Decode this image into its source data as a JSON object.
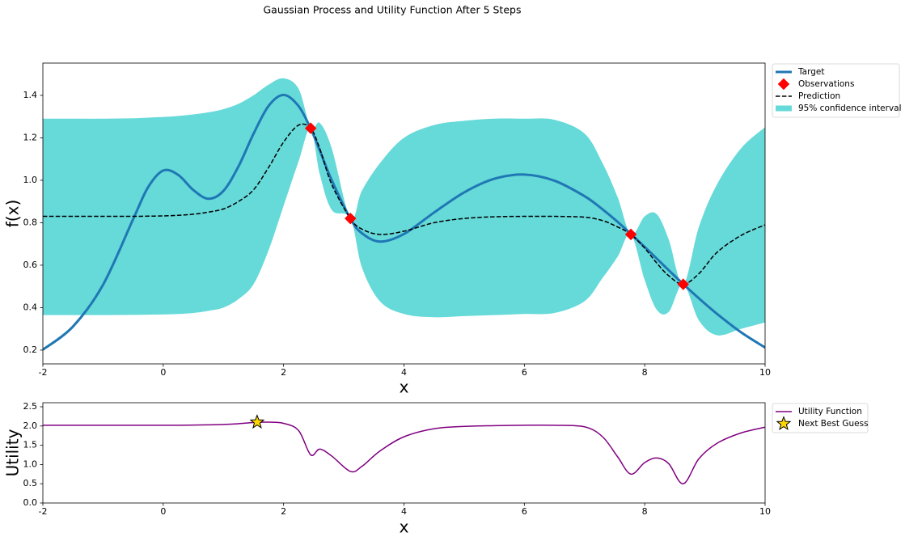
{
  "title": "Gaussian Process and Utility Function After 5 Steps",
  "chart_data": [
    {
      "type": "line",
      "xlabel": "x",
      "ylabel": "f(x)",
      "legend": "outside-upper-right",
      "grid": false,
      "xlim": [
        -2,
        10
      ],
      "ylim": [
        0.135,
        1.552
      ],
      "xticks": [
        -2,
        0,
        2,
        4,
        6,
        8,
        10
      ],
      "yticks": [
        0.2,
        0.4,
        0.6,
        0.8,
        {
          "value": 1,
          "label": "1.0"
        },
        1.2,
        1.4
      ],
      "x": [
        -2,
        -1.5,
        -1,
        -0.5,
        -0.25,
        0,
        0.25,
        0.5,
        0.75,
        1,
        1.25,
        1.5,
        1.75,
        2,
        2.25,
        2.45,
        2.6,
        2.8,
        3.11,
        3.3,
        3.6,
        4,
        4.5,
        5,
        5.5,
        6,
        6.5,
        7,
        7.3,
        7.55,
        7.77,
        8,
        8.2,
        8.4,
        8.64,
        8.9,
        9.2,
        9.6,
        10
      ],
      "series": [
        {
          "name": "Target",
          "kind": "line",
          "color": "#1f77b4",
          "width": 3,
          "values": [
            0.202,
            0.311,
            0.508,
            0.817,
            0.968,
            1.046,
            1.025,
            0.954,
            0.913,
            0.95,
            1.065,
            1.219,
            1.35,
            1.402,
            1.349,
            1.243,
            1.141,
            1.0,
            0.819,
            0.751,
            0.711,
            0.747,
            0.848,
            0.943,
            1.007,
            1.027,
            0.998,
            0.925,
            0.863,
            0.804,
            0.747,
            0.686,
            0.631,
            0.576,
            0.511,
            0.444,
            0.371,
            0.284,
            0.212
          ]
        },
        {
          "name": "Observations",
          "kind": "scatter",
          "marker": "diamond",
          "color": "#ff0000",
          "x": [
            2.45,
            3.11,
            7.77,
            8.64
          ],
          "values": [
            1.245,
            0.82,
            0.745,
            0.51
          ]
        },
        {
          "name": "Prediction",
          "kind": "line",
          "dash": "dashed",
          "color": "#000000",
          "width": 1.5,
          "values": [
            0.83,
            0.83,
            0.83,
            0.83,
            0.831,
            0.832,
            0.835,
            0.84,
            0.85,
            0.865,
            0.9,
            0.955,
            1.06,
            1.18,
            1.26,
            1.245,
            1.15,
            0.98,
            0.82,
            0.77,
            0.745,
            0.76,
            0.8,
            0.82,
            0.828,
            0.83,
            0.83,
            0.826,
            0.81,
            0.78,
            0.745,
            0.68,
            0.61,
            0.55,
            0.51,
            0.56,
            0.66,
            0.74,
            0.79
          ]
        },
        {
          "name": "95% confidence interval",
          "kind": "band",
          "color": "#66d9d9",
          "upper": [
            1.29,
            1.29,
            1.29,
            1.292,
            1.295,
            1.298,
            1.303,
            1.31,
            1.32,
            1.335,
            1.36,
            1.4,
            1.45,
            1.48,
            1.43,
            1.245,
            1.27,
            1.15,
            0.82,
            0.95,
            1.08,
            1.2,
            1.26,
            1.28,
            1.29,
            1.29,
            1.285,
            1.22,
            1.08,
            0.92,
            0.745,
            0.83,
            0.84,
            0.72,
            0.51,
            0.78,
            0.98,
            1.15,
            1.25
          ],
          "lower": [
            0.365,
            0.365,
            0.365,
            0.366,
            0.367,
            0.368,
            0.37,
            0.375,
            0.385,
            0.4,
            0.44,
            0.51,
            0.67,
            0.88,
            1.09,
            1.245,
            1.03,
            0.86,
            0.82,
            0.59,
            0.43,
            0.37,
            0.355,
            0.36,
            0.365,
            0.37,
            0.375,
            0.43,
            0.54,
            0.64,
            0.745,
            0.53,
            0.39,
            0.38,
            0.51,
            0.34,
            0.27,
            0.3,
            0.33
          ]
        }
      ]
    },
    {
      "type": "line",
      "xlabel": "x",
      "ylabel": "Utility",
      "legend": "outside-upper-right",
      "grid": false,
      "xlim": [
        -2,
        10
      ],
      "ylim": [
        0,
        2.605
      ],
      "xticks": [
        -2,
        0,
        2,
        4,
        6,
        8,
        10
      ],
      "yticks": [
        {
          "value": 0,
          "label": "0.0"
        },
        0.5,
        {
          "value": 1,
          "label": "1.0"
        },
        1.5,
        {
          "value": 2,
          "label": "2.0"
        },
        2.5
      ],
      "x": [
        -2,
        -1.5,
        -1,
        -0.5,
        -0.25,
        0,
        0.25,
        0.5,
        0.75,
        1,
        1.25,
        1.5,
        1.75,
        2,
        2.25,
        2.45,
        2.6,
        2.8,
        3.11,
        3.3,
        3.6,
        4,
        4.5,
        5,
        5.5,
        6,
        6.5,
        7,
        7.3,
        7.55,
        7.77,
        8,
        8.2,
        8.4,
        8.64,
        8.9,
        9.2,
        9.6,
        10
      ],
      "series": [
        {
          "name": "Utility Function",
          "kind": "line",
          "color": "#800080",
          "width": 1.5,
          "values": [
            2.02,
            2.02,
            2.02,
            2.02,
            2.02,
            2.02,
            2.02,
            2.025,
            2.03,
            2.04,
            2.06,
            2.09,
            2.1,
            2.07,
            1.88,
            1.25,
            1.4,
            1.22,
            0.82,
            0.95,
            1.35,
            1.72,
            1.93,
            1.99,
            2.01,
            2.02,
            2.02,
            1.98,
            1.72,
            1.2,
            0.75,
            1.05,
            1.17,
            1.02,
            0.5,
            1.15,
            1.55,
            1.82,
            1.97
          ]
        },
        {
          "name": "Next Best Guess",
          "kind": "scatter",
          "marker": "star",
          "color": "#ffd700",
          "x": [
            1.56
          ],
          "values": [
            2.1
          ]
        }
      ]
    }
  ]
}
